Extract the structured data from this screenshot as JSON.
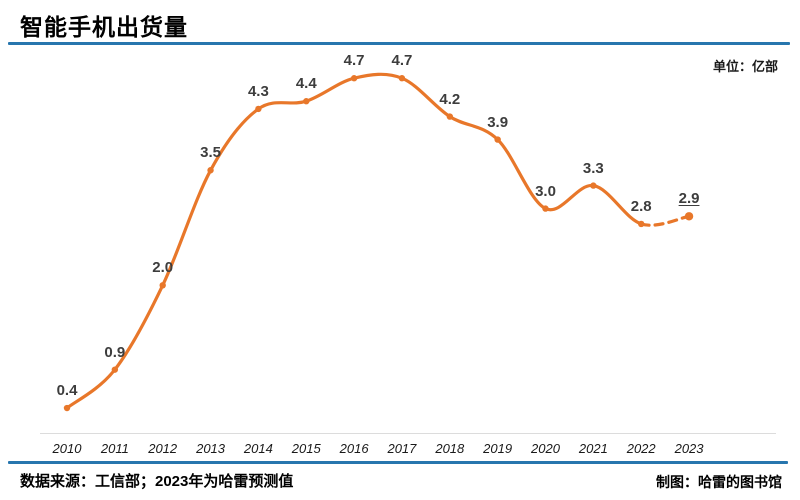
{
  "header": {
    "title": "智能手机出货量"
  },
  "unit_label": "单位：亿部",
  "chart_data": {
    "type": "line",
    "title": "智能手机出货量",
    "unit": "亿部",
    "categories": [
      "2010",
      "2011",
      "2012",
      "2013",
      "2014",
      "2015",
      "2016",
      "2017",
      "2018",
      "2019",
      "2020",
      "2021",
      "2022",
      "2023"
    ],
    "series": [
      {
        "name": "智能手机出货量",
        "values": [
          0.4,
          0.9,
          2.0,
          3.5,
          4.3,
          4.4,
          4.7,
          4.7,
          4.2,
          3.9,
          3.0,
          3.3,
          2.8,
          2.9
        ]
      }
    ],
    "point_labels": [
      "0.4",
      "0.9",
      "2.0",
      "3.5",
      "4.3",
      "4.4",
      "4.7",
      "4.7",
      "4.2",
      "3.9",
      "3.0",
      "3.3",
      "2.8",
      "2.9"
    ],
    "forecast": {
      "dashed_segment_from": "2022",
      "dashed_segment_to": "2023",
      "underlined_label_index": 13
    },
    "ylim": [
      0,
      5
    ],
    "grid": false,
    "legend": "none",
    "x_axis_labels_style": "italic"
  },
  "footer": {
    "source": "数据来源：工信部；2023年为哈雷预测值",
    "credit": "制图：哈雷的图书馆"
  },
  "colors": {
    "accent_blue": "#2776AE",
    "line_orange": "#E8772A",
    "axis_gray": "#DCDCDC",
    "label_dark": "#3D3D3D"
  }
}
